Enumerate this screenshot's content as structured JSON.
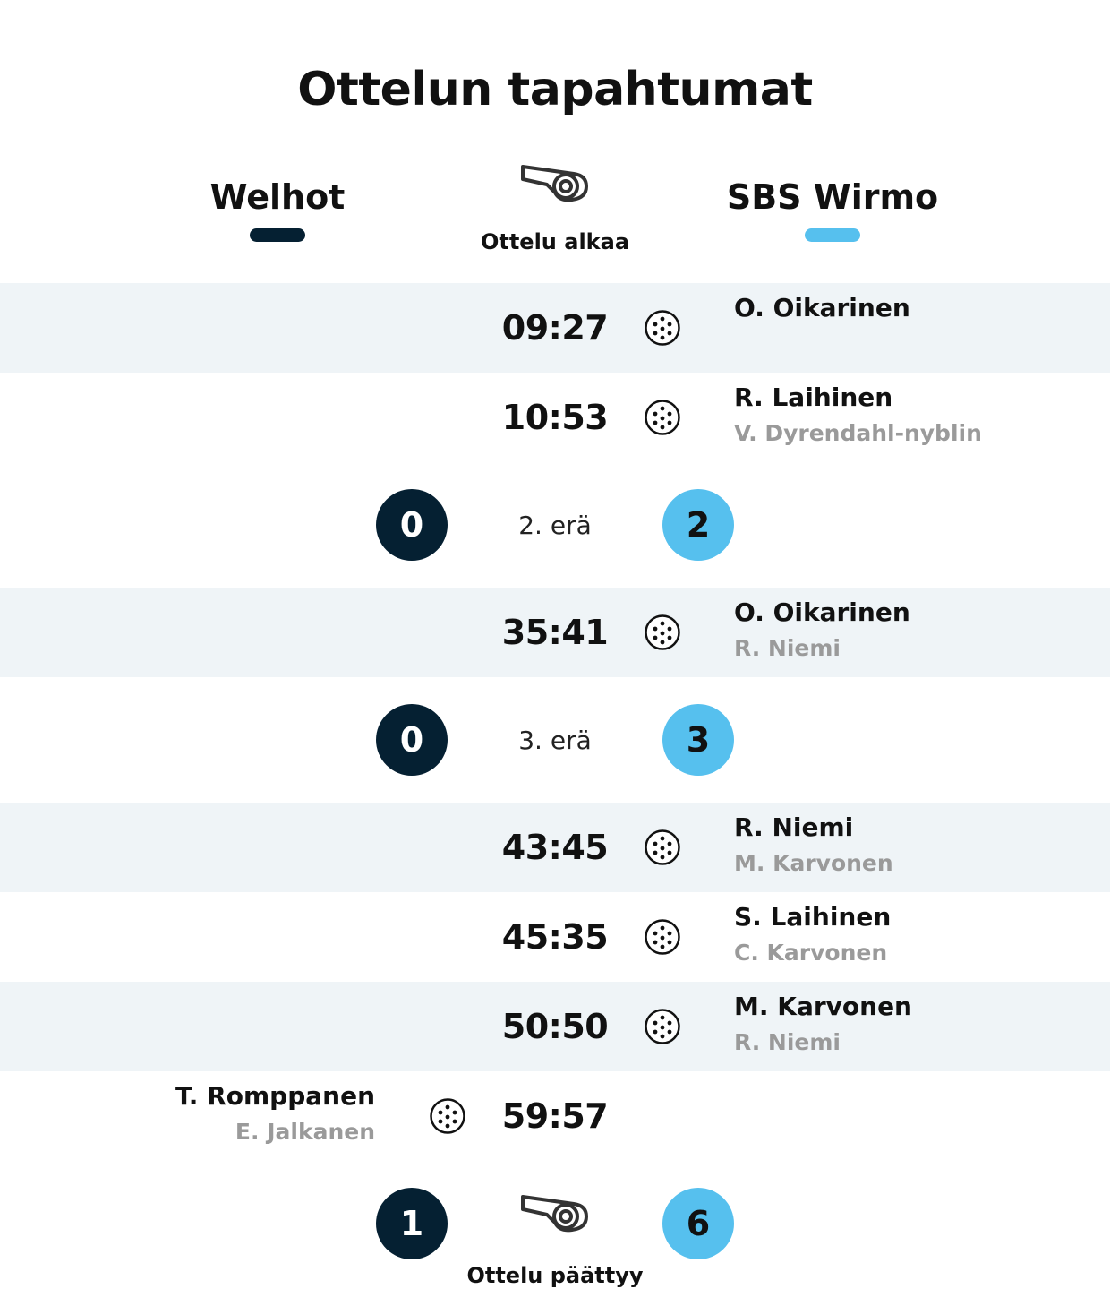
{
  "title": "Ottelun tapahtumat",
  "colors": {
    "home": "#052032",
    "away": "#56c0ee",
    "shaded_row": "#eff4f7",
    "assist_text": "#9a9a9a"
  },
  "teams": {
    "home": {
      "name": "Welhot"
    },
    "away": {
      "name": "SBS Wirmo"
    }
  },
  "start": {
    "icon": "whistle-icon",
    "label": "Ottelu alkaa"
  },
  "end": {
    "icon": "whistle-icon",
    "label": "Ottelu päättyy",
    "home_score": "1",
    "away_score": "6"
  },
  "periods": [
    {
      "label": "2. erä",
      "home_score": "0",
      "away_score": "2"
    },
    {
      "label": "3. erä",
      "home_score": "0",
      "away_score": "3"
    }
  ],
  "events": [
    {
      "time": "09:27",
      "team": "away",
      "icon": "floorball-icon",
      "scorer": "O. Oikarinen",
      "assist": ""
    },
    {
      "time": "10:53",
      "team": "away",
      "icon": "floorball-icon",
      "scorer": "R. Laihinen",
      "assist": "V. Dyrendahl-nyblin"
    },
    {
      "time": "35:41",
      "team": "away",
      "icon": "floorball-icon",
      "scorer": "O. Oikarinen",
      "assist": "R. Niemi"
    },
    {
      "time": "43:45",
      "team": "away",
      "icon": "floorball-icon",
      "scorer": "R. Niemi",
      "assist": "M. Karvonen"
    },
    {
      "time": "45:35",
      "team": "away",
      "icon": "floorball-icon",
      "scorer": "S. Laihinen",
      "assist": "C. Karvonen"
    },
    {
      "time": "50:50",
      "team": "away",
      "icon": "floorball-icon",
      "scorer": "M. Karvonen",
      "assist": "R. Niemi"
    },
    {
      "time": "59:57",
      "team": "home",
      "icon": "floorball-icon",
      "scorer": "T. Romppanen",
      "assist": "E. Jalkanen"
    }
  ]
}
